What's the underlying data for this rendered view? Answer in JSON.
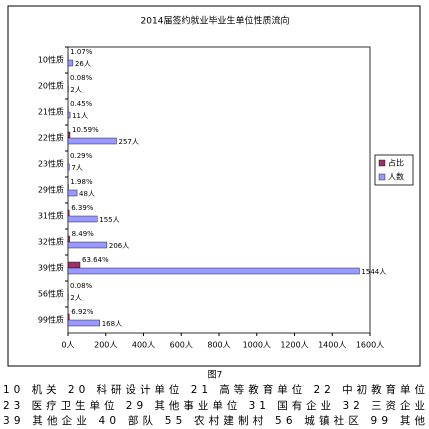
{
  "chart_data": {
    "type": "hbar",
    "title": "2014届签约就业毕业生单位性质流向",
    "categories": [
      "10性质",
      "20性质",
      "21性质",
      "22性质",
      "23性质",
      "29性质",
      "31性质",
      "32性质",
      "39性质",
      "56性质",
      "99性质"
    ],
    "series": [
      {
        "name": "占比",
        "color": "#993366",
        "values": [
          1.07,
          0.08,
          0.45,
          10.59,
          0.29,
          1.98,
          6.39,
          8.49,
          63.64,
          0.08,
          6.92
        ],
        "value_labels": [
          "1.07%",
          "0.08%",
          "0.45%",
          "10.59%",
          "0.29%",
          "1.98%",
          "6.39%",
          "8.49%",
          "63.64%",
          "0.08%",
          "6.92%"
        ]
      },
      {
        "name": "人数",
        "color": "#9999ff",
        "values": [
          26,
          2,
          11,
          257,
          7,
          48,
          155,
          206,
          1544,
          2,
          168
        ],
        "value_labels": [
          "26人",
          "2人",
          "11人",
          "257人",
          "7人",
          "48人",
          "155人",
          "206人",
          "1544人",
          "2人",
          "168人"
        ]
      }
    ],
    "xlim": [
      0,
      1600
    ],
    "xticks": [
      {
        "value": 0,
        "label": "0人"
      },
      {
        "value": 200,
        "label": "200人"
      },
      {
        "value": 400,
        "label": "400人"
      },
      {
        "value": 600,
        "label": "600人"
      },
      {
        "value": 800,
        "label": "800人"
      },
      {
        "value": 1000,
        "label": "1000人"
      },
      {
        "value": 1200,
        "label": "1200人"
      },
      {
        "value": 1400,
        "label": "1400人"
      },
      {
        "value": 1600,
        "label": "1600人"
      }
    ],
    "legend": "right",
    "caption": "图7",
    "notes": [
      "10 机关   20 科研设计单位   21 高等教育单位   22 中初教育单位",
      "23 医疗卫生单位   29 其他事业单位   31 国有企业   32 三资企业",
      "39 其他企业   40 部队   55 农村建制村   56 城镇社区   99 其他"
    ]
  }
}
